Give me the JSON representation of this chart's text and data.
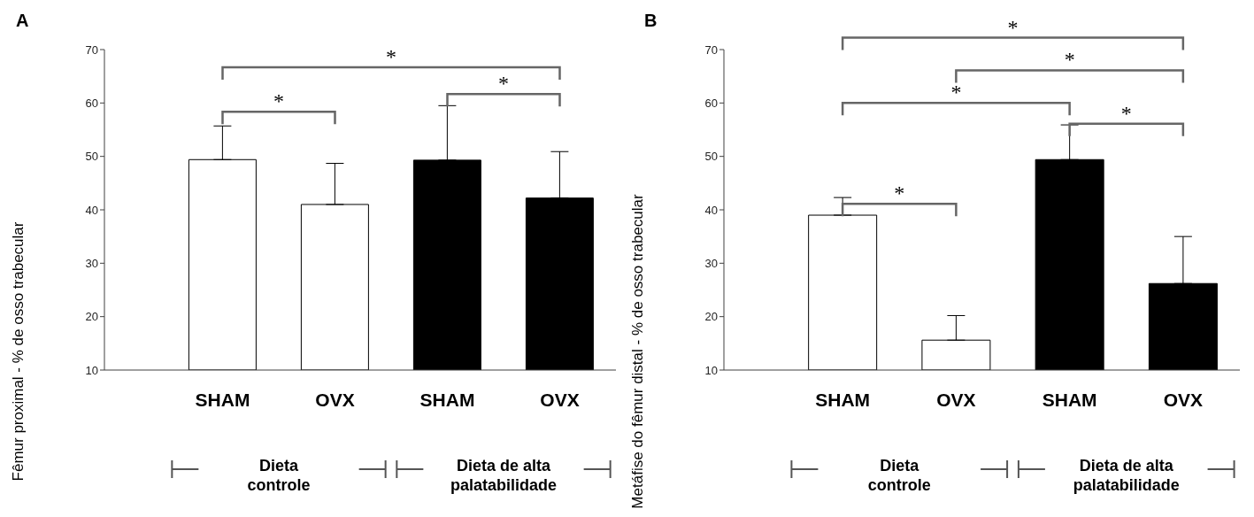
{
  "chart_data": [
    {
      "type": "bar",
      "title": "A",
      "categories": [
        "SHAM",
        "OVX",
        "SHAM",
        "OVX"
      ],
      "values": [
        49.4,
        41.0,
        49.3,
        42.2
      ],
      "colors": [
        "#ffffff",
        "#ffffff",
        "#000000",
        "#000000"
      ],
      "errors": [
        [
          49.4,
          55.7
        ],
        [
          41.0,
          48.7
        ],
        [
          49.3,
          59.5
        ],
        [
          42.2,
          50.9
        ]
      ],
      "ylabel": "Fêmur proximal - % de osso trabecular",
      "ylim": [
        10,
        70
      ],
      "yticks": [
        10,
        20,
        30,
        40,
        50,
        60,
        70
      ],
      "annotations": [
        "Dieta controle",
        "Dieta de alta palatabilidade",
        "*",
        "*",
        "*"
      ]
    },
    {
      "type": "bar",
      "title": "B",
      "categories": [
        "SHAM",
        "OVX",
        "SHAM",
        "OVX"
      ],
      "values": [
        39.0,
        15.6,
        49.4,
        26.2
      ],
      "colors": [
        "#ffffff",
        "#ffffff",
        "#000000",
        "#000000"
      ],
      "errors": [
        [
          39.0,
          42.3
        ],
        [
          15.6,
          20.2
        ],
        [
          49.4,
          55.9
        ],
        [
          26.2,
          35.0
        ]
      ],
      "ylabel": "Metáfise do fêmur distal - % de osso trabecular",
      "ylim": [
        10,
        70
      ],
      "yticks": [
        10,
        20,
        30,
        40,
        50,
        60,
        70
      ],
      "annotations": [
        "Dieta controle",
        "Dieta de alta palatabilidade",
        "*",
        "*",
        "*",
        "*",
        "*"
      ]
    }
  ]
}
